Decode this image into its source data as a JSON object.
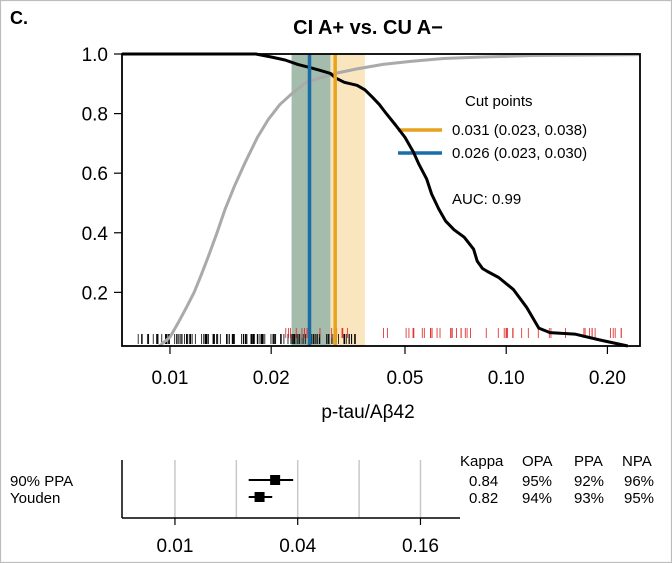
{
  "panel_label": "C.",
  "chart_data": [
    {
      "type": "line",
      "title": "CI A+ vs. CU A−",
      "xlabel": "p-tau/Aβ42",
      "ylabel": "",
      "x_scale": "log",
      "xlim": [
        0.0072,
        0.25
      ],
      "ylim": [
        0.02,
        1.0
      ],
      "x_ticks": [
        0.01,
        0.02,
        0.05,
        0.1,
        0.2
      ],
      "x_tick_labels": [
        "0.01",
        "0.02",
        "0.05",
        "0.10",
        "0.20"
      ],
      "y_ticks": [
        0.2,
        0.4,
        0.6,
        0.8,
        1.0
      ],
      "y_tick_labels": [
        "0.2",
        "0.4",
        "0.6",
        "0.8",
        "1.0"
      ],
      "grid": false,
      "legend_title": "Cut points",
      "legend_position": "top-right",
      "auc_label": "AUC: 0.99",
      "series": [
        {
          "color": "#aaaaaa",
          "points": [
            [
              0.0093,
              0.02
            ],
            [
              0.01,
              0.05
            ],
            [
              0.0106,
              0.1
            ],
            [
              0.0112,
              0.15
            ],
            [
              0.0118,
              0.2
            ],
            [
              0.0124,
              0.26
            ],
            [
              0.013,
              0.32
            ],
            [
              0.0138,
              0.4
            ],
            [
              0.0146,
              0.48
            ],
            [
              0.0156,
              0.56
            ],
            [
              0.0168,
              0.64
            ],
            [
              0.0182,
              0.72
            ],
            [
              0.0196,
              0.78
            ],
            [
              0.0212,
              0.83
            ],
            [
              0.0232,
              0.87
            ],
            [
              0.0255,
              0.905
            ],
            [
              0.028,
              0.92
            ],
            [
              0.031,
              0.935
            ],
            [
              0.036,
              0.95
            ],
            [
              0.043,
              0.965
            ],
            [
              0.052,
              0.975
            ],
            [
              0.065,
              0.985
            ],
            [
              0.085,
              0.99
            ],
            [
              0.12,
              0.995
            ],
            [
              0.25,
              0.998
            ]
          ]
        },
        {
          "color": "#000000",
          "points": [
            [
              0.0072,
              1.0
            ],
            [
              0.018,
              1.0
            ],
            [
              0.02,
              0.99
            ],
            [
              0.022,
              0.98
            ],
            [
              0.024,
              0.965
            ],
            [
              0.026,
              0.955
            ],
            [
              0.028,
              0.945
            ],
            [
              0.03,
              0.935
            ],
            [
              0.031,
              0.92
            ],
            [
              0.033,
              0.905
            ],
            [
              0.036,
              0.895
            ],
            [
              0.038,
              0.88
            ],
            [
              0.04,
              0.855
            ],
            [
              0.042,
              0.83
            ],
            [
              0.044,
              0.8
            ],
            [
              0.047,
              0.76
            ],
            [
              0.05,
              0.72
            ],
            [
              0.053,
              0.67
            ],
            [
              0.055,
              0.63
            ],
            [
              0.058,
              0.58
            ],
            [
              0.06,
              0.53
            ],
            [
              0.063,
              0.48
            ],
            [
              0.066,
              0.44
            ],
            [
              0.07,
              0.41
            ],
            [
              0.075,
              0.385
            ],
            [
              0.08,
              0.345
            ],
            [
              0.082,
              0.305
            ],
            [
              0.085,
              0.28
            ],
            [
              0.088,
              0.27
            ],
            [
              0.095,
              0.25
            ],
            [
              0.105,
              0.21
            ],
            [
              0.115,
              0.15
            ],
            [
              0.125,
              0.08
            ],
            [
              0.135,
              0.065
            ],
            [
              0.16,
              0.06
            ],
            [
              0.19,
              0.04
            ],
            [
              0.23,
              0.02
            ]
          ]
        }
      ],
      "cut_points": [
        {
          "label": "0.031 (0.023, 0.038)",
          "value": 0.031,
          "ci": [
            0.023,
            0.038
          ],
          "color": "#e8a21c",
          "band_color": "#f4d18a"
        },
        {
          "label": "0.026 (0.023, 0.030)",
          "value": 0.026,
          "ci": [
            0.023,
            0.03
          ],
          "color": "#1a6ea8",
          "band_color": "#7fa9a4"
        }
      ],
      "rug_black_range": [
        0.008,
        0.036
      ],
      "rug_red_range": [
        0.021,
        0.225
      ]
    },
    {
      "type": "scatter",
      "x_scale": "log",
      "xlim": [
        0.0055,
        0.25
      ],
      "x_ticks": [
        0.01,
        0.04,
        0.16
      ],
      "x_tick_labels": [
        "0.01",
        "0.04",
        "0.16"
      ],
      "x_gridlines": [
        0.01,
        0.02,
        0.04,
        0.08,
        0.16
      ],
      "rows": [
        {
          "label": "90% PPA",
          "estimate": 0.031,
          "ci": [
            0.023,
            0.038
          ],
          "kappa": "0.84",
          "opa": "95%",
          "ppa": "92%",
          "npa": "96%"
        },
        {
          "label": "Youden",
          "estimate": 0.026,
          "ci": [
            0.023,
            0.03
          ],
          "kappa": "0.82",
          "opa": "94%",
          "ppa": "93%",
          "npa": "95%"
        }
      ],
      "table_headers": [
        "Kappa",
        "OPA",
        "PPA",
        "NPA"
      ]
    }
  ]
}
